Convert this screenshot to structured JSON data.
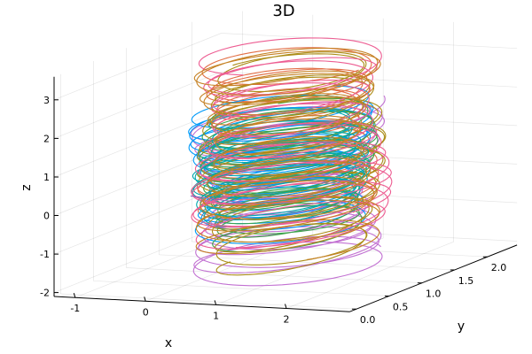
{
  "chart_data": {
    "type": "line",
    "title": "3D",
    "xlabel": "x",
    "ylabel": "y",
    "zlabel": "z",
    "xlim": [
      -1.3,
      2.9
    ],
    "ylim": [
      -0.1,
      2.45
    ],
    "zlim": [
      -2.1,
      3.6
    ],
    "x_ticks": [
      "-1",
      "0",
      "1",
      "2"
    ],
    "y_ticks": [
      "0.0",
      "0.5",
      "1.0",
      "1.5",
      "2.0"
    ],
    "z_ticks": [
      "-2",
      "-1",
      "0",
      "1",
      "2",
      "3"
    ],
    "grid": true,
    "legend": "none",
    "series": [
      {
        "color": "#e26f46",
        "center": [
          0.95,
          1.05
        ],
        "radius": [
          1.05,
          0.85
        ],
        "z": [
          -0.4,
          3.3
        ],
        "turns": 15
      },
      {
        "color": "#c271d2",
        "center": [
          0.95,
          1.05
        ],
        "radius": [
          1.1,
          0.9
        ],
        "z": [
          -1.9,
          2.0
        ],
        "turns": 18
      },
      {
        "color": "#009af9",
        "center": [
          0.9,
          1.0
        ],
        "radius": [
          1.05,
          0.85
        ],
        "z": [
          -0.7,
          2.2
        ],
        "turns": 18
      },
      {
        "color": "#3ea44e",
        "center": [
          0.95,
          1.05
        ],
        "radius": [
          1.0,
          0.85
        ],
        "z": [
          -1.0,
          2.1
        ],
        "turns": 16
      },
      {
        "color": "#ac8d18",
        "center": [
          1.0,
          1.05
        ],
        "radius": [
          1.05,
          0.9
        ],
        "z": [
          -1.7,
          3.4
        ],
        "turns": 16
      },
      {
        "color": "#00a9ad",
        "center": [
          0.9,
          1.0
        ],
        "radius": [
          1.0,
          0.85
        ],
        "z": [
          -0.3,
          1.9
        ],
        "turns": 14
      },
      {
        "color": "#ed5d92",
        "center": [
          1.0,
          1.05
        ],
        "radius": [
          1.15,
          0.95
        ],
        "z": [
          -0.9,
          3.5
        ],
        "turns": 16
      },
      {
        "color": "#c68225",
        "center": [
          0.95,
          1.05
        ],
        "radius": [
          1.05,
          0.9
        ],
        "z": [
          -1.2,
          3.45
        ],
        "turns": 17
      }
    ],
    "initial_segment": {
      "color": "#8e60b8",
      "x": [
        -0.2,
        0.5
      ],
      "y": [
        0.8,
        0.8
      ],
      "z": [
        0.0,
        -0.1
      ]
    }
  }
}
